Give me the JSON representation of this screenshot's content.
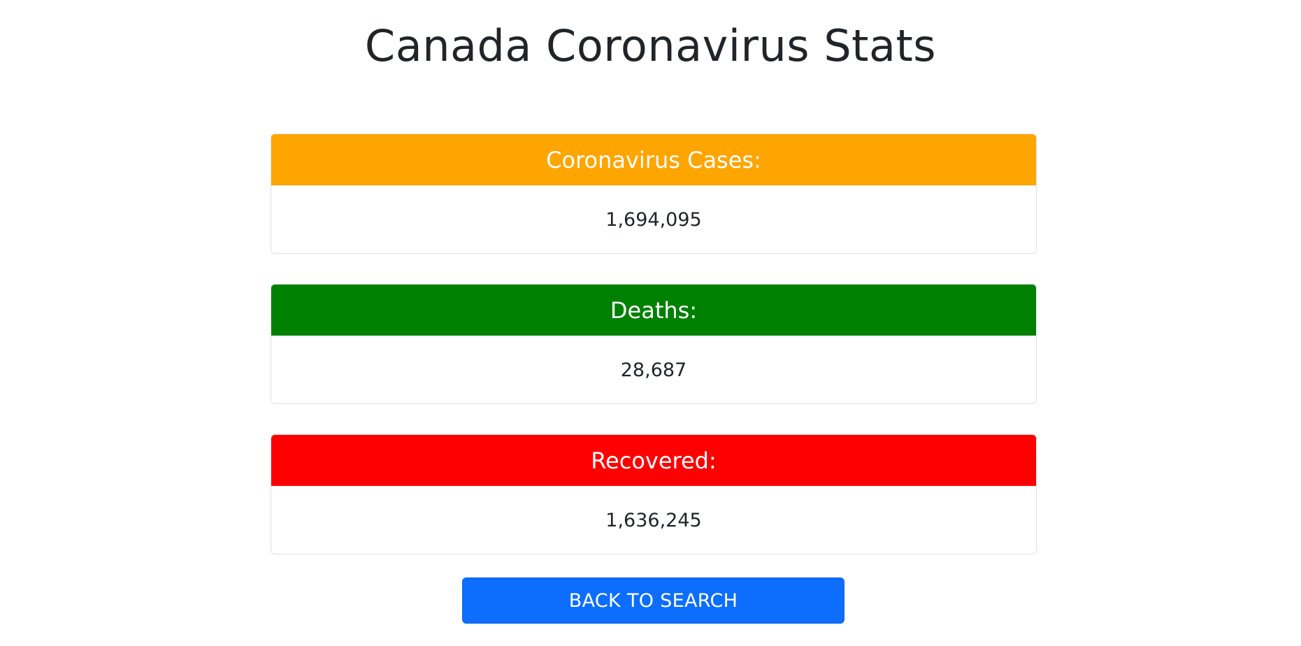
{
  "page": {
    "title": "Canada Coronavirus Stats"
  },
  "stats": [
    {
      "label": "Coronavirus Cases:",
      "value": "1,694,095",
      "color": "#ffa500"
    },
    {
      "label": "Deaths:",
      "value": "28,687",
      "color": "#008000"
    },
    {
      "label": "Recovered:",
      "value": "1,636,245",
      "color": "#ff0000"
    }
  ],
  "actions": {
    "back_label": "BACK TO SEARCH",
    "back_color": "#0d6efd"
  }
}
